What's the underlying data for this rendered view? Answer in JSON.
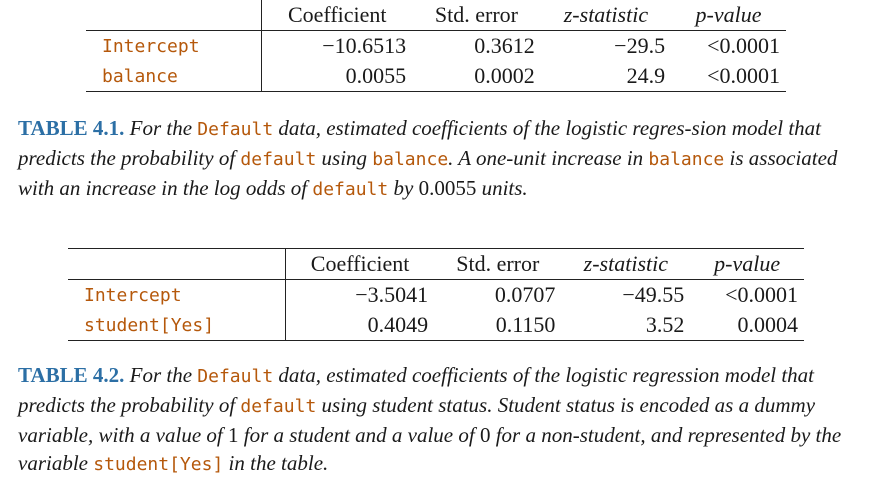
{
  "table1": {
    "headers": [
      "",
      "Coefficient",
      "Std. error",
      "z-statistic",
      "p-value"
    ],
    "rows": [
      [
        "Intercept",
        "−10.6513",
        "0.3612",
        "−29.5",
        "<0.0001"
      ],
      [
        "balance",
        "0.0055",
        "0.0002",
        "24.9",
        "<0.0001"
      ]
    ]
  },
  "caption1": {
    "label": "TABLE 4.1.",
    "t1": " For the ",
    "c1": "Default",
    "t2": " data, estimated coefficients of the logistic regres-sion model that predicts the probability of ",
    "c2": "default",
    "t3": " using ",
    "c3": "balance",
    "t4": ". A one-unit increase in ",
    "c4": "balance",
    "t5": " is associated with an increase in the log odds of ",
    "c5": "default",
    "t6": " by ",
    "n1": "0.0055",
    "t7": " units."
  },
  "table2": {
    "headers": [
      "",
      "Coefficient",
      "Std. error",
      "z-statistic",
      "p-value"
    ],
    "rows": [
      [
        "Intercept",
        "−3.5041",
        "0.0707",
        "−49.55",
        "<0.0001"
      ],
      [
        "student[Yes]",
        "0.4049",
        "0.1150",
        "3.52",
        "0.0004"
      ]
    ]
  },
  "caption2": {
    "label": "TABLE 4.2.",
    "t1": " For the ",
    "c1": "Default",
    "t2": " data, estimated coefficients of the logistic regression model that predicts the probability of ",
    "c2": "default",
    "t3": " using student status. Student status is encoded as a dummy variable, with a value of ",
    "n1": "1",
    "t4": " for a student and a value of ",
    "n2": "0",
    "t5": " for a non-student, and represented by the variable ",
    "c3": "student[Yes]",
    "t6": " in the table."
  }
}
